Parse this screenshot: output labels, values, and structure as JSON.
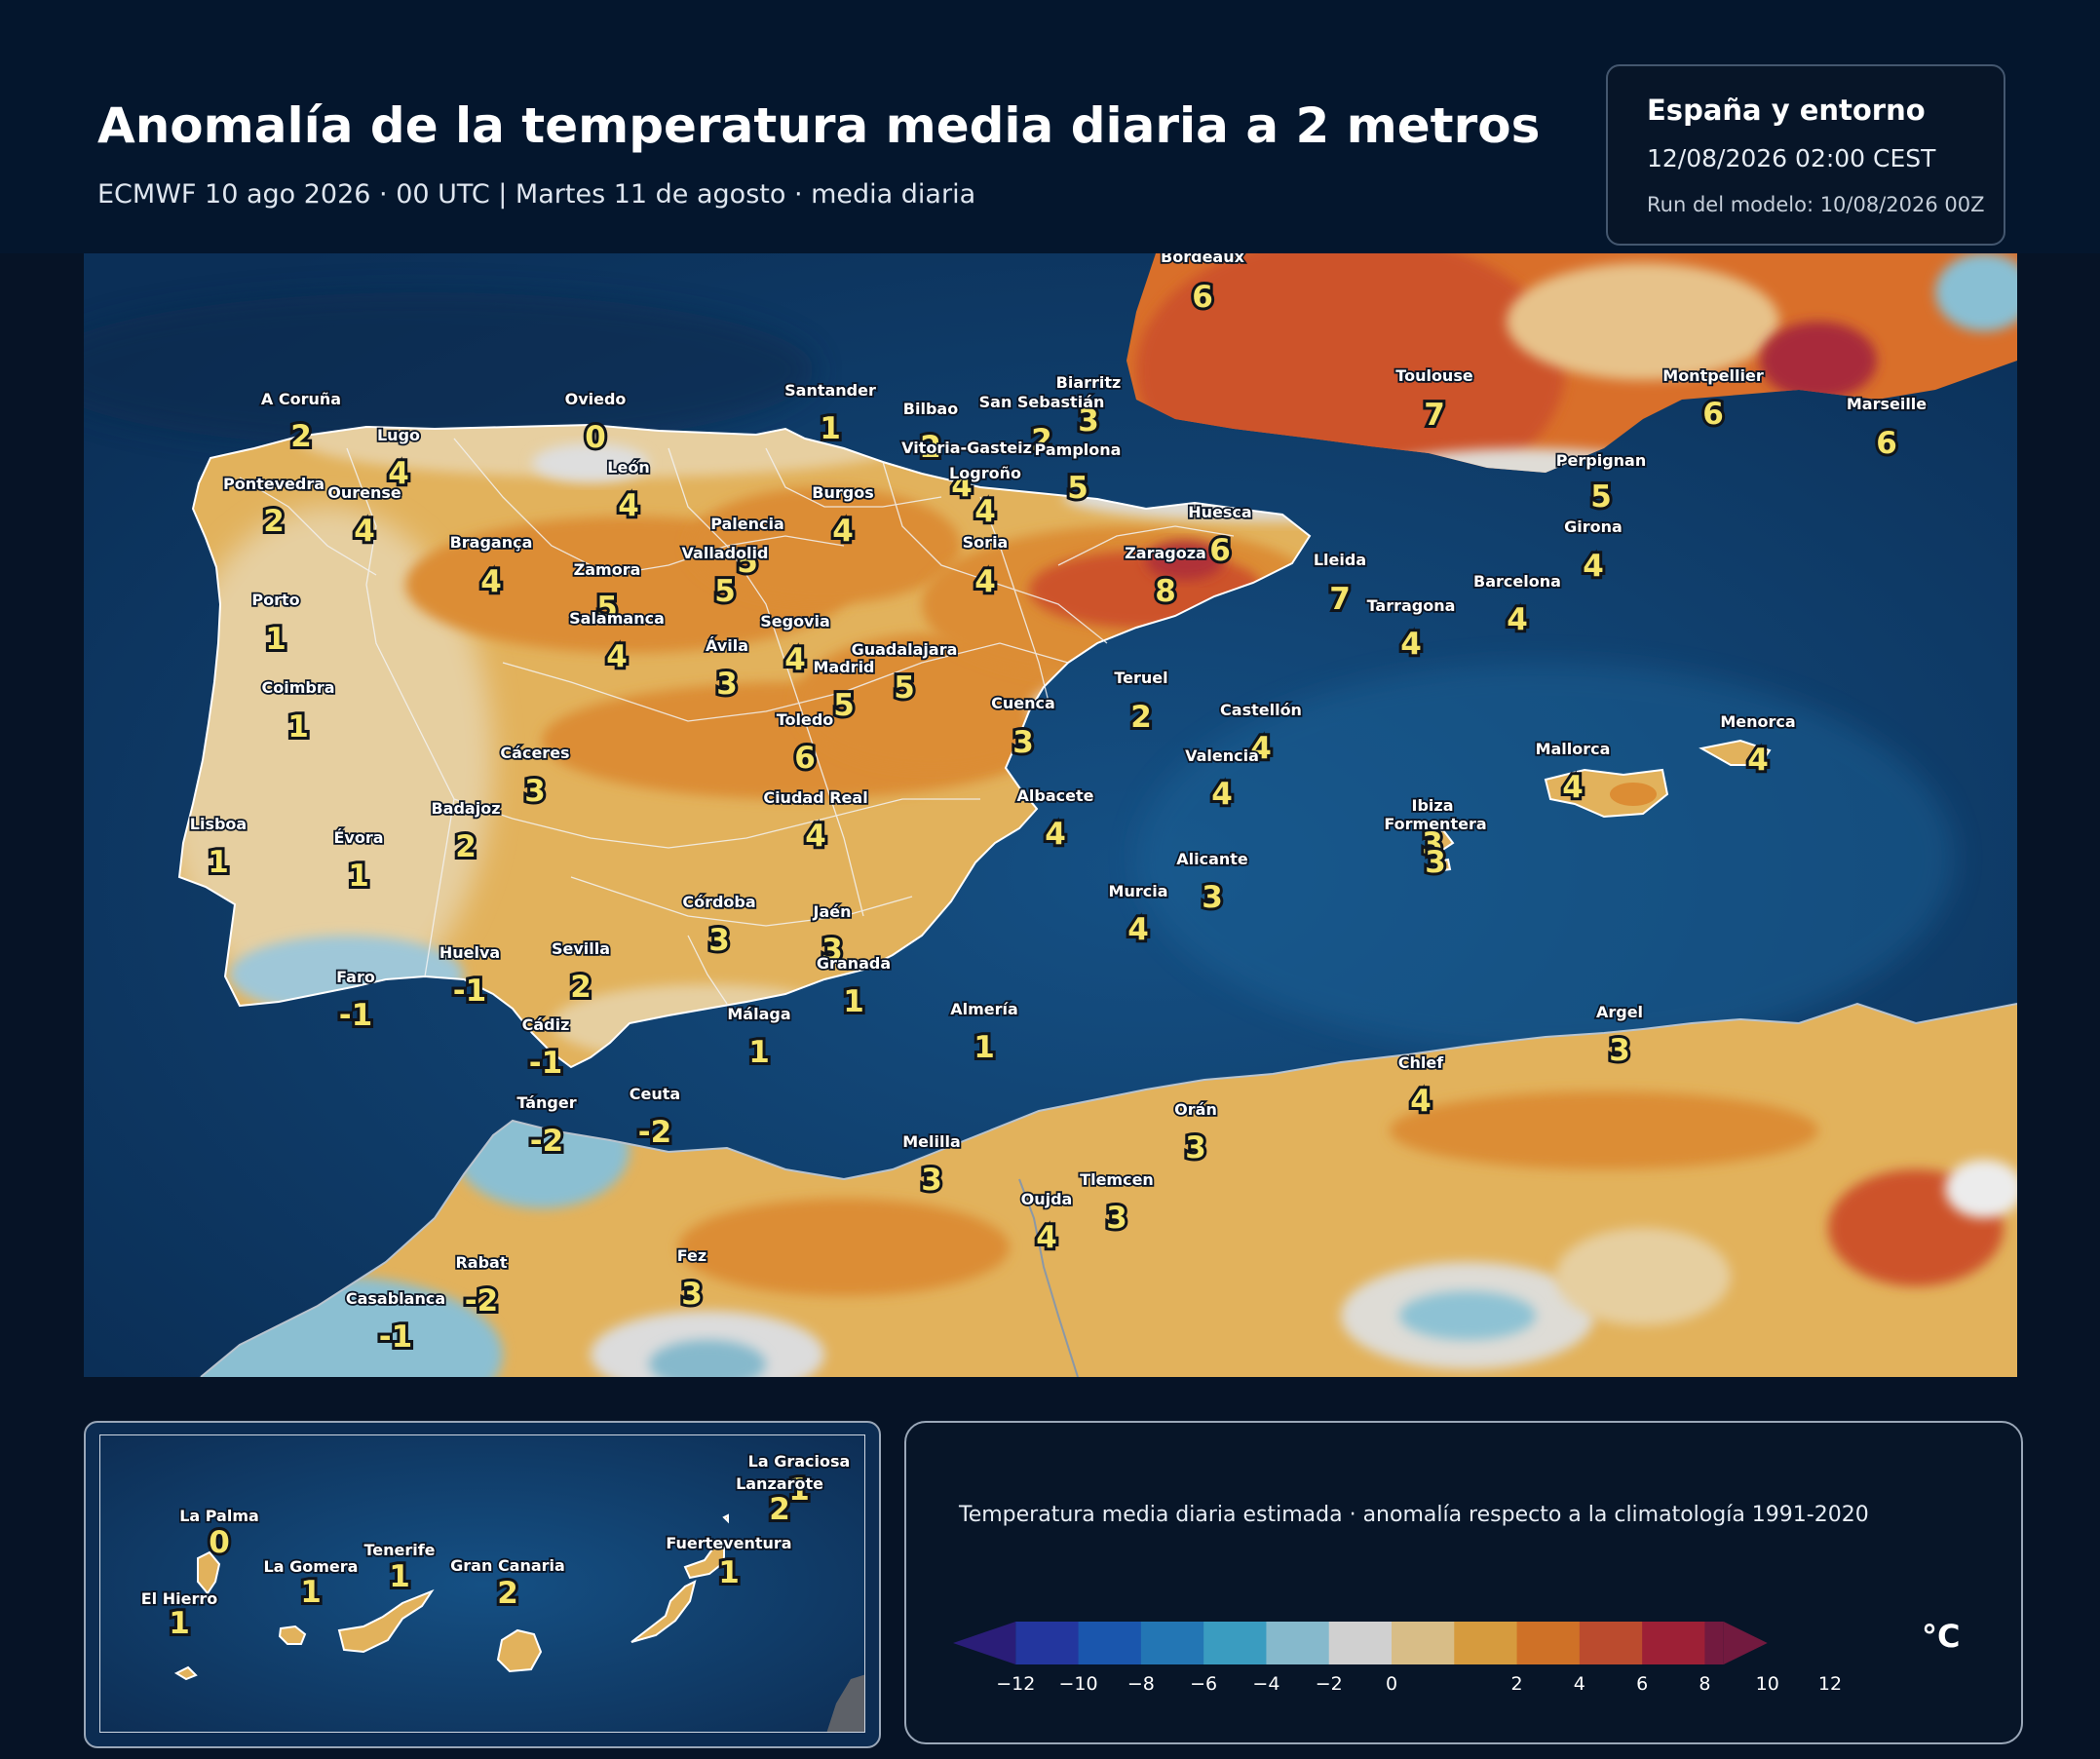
{
  "header": {
    "title": "Anomalía de la temperatura media diaria a 2 metros",
    "subtitle": "ECMWF 10 ago 2026 · 00 UTC  |  Martes 11 de agosto · media diaria"
  },
  "info": {
    "region": "España y entorno",
    "valid_time": "12/08/2026  02:00 CEST",
    "run": "Run del modelo: 10/08/2026 00Z"
  },
  "legend": {
    "caption": "Temperatura media diaria estimada · anomalía respecto a la climatología 1991-2020",
    "unit": "°C",
    "ticks": [
      "−12",
      "−10",
      "−8",
      "−6",
      "−4",
      "−2",
      "0",
      "2",
      "4",
      "6",
      "8",
      "10",
      "12"
    ],
    "colors": [
      "#2a1d78",
      "#23369e",
      "#1a56ad",
      "#2376b4",
      "#3a9cc0",
      "#86b9cc",
      "#d0d0d0",
      "#d8bd87",
      "#d69b3e",
      "#cf7127",
      "#bb4b2e",
      "#9d2036",
      "#721a3f"
    ]
  },
  "cities": [
    {
      "name": "Bordeaux",
      "value": "6"
    },
    {
      "name": "Toulouse",
      "value": "7"
    },
    {
      "name": "Montpellier",
      "value": "6"
    },
    {
      "name": "Marseille",
      "value": "6"
    },
    {
      "name": "Biarritz",
      "value": "3"
    },
    {
      "name": "Perpignan",
      "value": "5"
    },
    {
      "name": "A Coruña",
      "value": "2"
    },
    {
      "name": "Lugo",
      "value": "4"
    },
    {
      "name": "Oviedo",
      "value": "0"
    },
    {
      "name": "Santander",
      "value": "1"
    },
    {
      "name": "Bilbao",
      "value": "2"
    },
    {
      "name": "San Sebastián",
      "value": "2"
    },
    {
      "name": "Vitoria-Gasteiz",
      "value": "4"
    },
    {
      "name": "Pamplona",
      "value": "5"
    },
    {
      "name": "Logroño",
      "value": "4"
    },
    {
      "name": "Pontevedra",
      "value": "2"
    },
    {
      "name": "Ourense",
      "value": "4"
    },
    {
      "name": "León",
      "value": "4"
    },
    {
      "name": "Burgos",
      "value": "4"
    },
    {
      "name": "Palencia",
      "value": "5"
    },
    {
      "name": "Huesca",
      "value": "6"
    },
    {
      "name": "Girona",
      "value": "4"
    },
    {
      "name": "Bragança",
      "value": "4"
    },
    {
      "name": "Zamora",
      "value": "5"
    },
    {
      "name": "Valladolid",
      "value": "5"
    },
    {
      "name": "Soria",
      "value": "4"
    },
    {
      "name": "Zaragoza",
      "value": "8"
    },
    {
      "name": "Lleida",
      "value": "7"
    },
    {
      "name": "Barcelona",
      "value": "4"
    },
    {
      "name": "Tarragona",
      "value": "4"
    },
    {
      "name": "Porto",
      "value": "1"
    },
    {
      "name": "Salamanca",
      "value": "4"
    },
    {
      "name": "Segovia",
      "value": "4"
    },
    {
      "name": "Ávila",
      "value": "3"
    },
    {
      "name": "Guadalajara",
      "value": "5"
    },
    {
      "name": "Madrid",
      "value": "5"
    },
    {
      "name": "Coimbra",
      "value": "1"
    },
    {
      "name": "Teruel",
      "value": "2"
    },
    {
      "name": "Cuenca",
      "value": "3"
    },
    {
      "name": "Toledo",
      "value": "6"
    },
    {
      "name": "Castellón",
      "value": "4"
    },
    {
      "name": "Valencia",
      "value": "4"
    },
    {
      "name": "Cáceres",
      "value": "3"
    },
    {
      "name": "Badajoz",
      "value": "2"
    },
    {
      "name": "Ciudad Real",
      "value": "4"
    },
    {
      "name": "Albacete",
      "value": "4"
    },
    {
      "name": "Lisboa",
      "value": "1"
    },
    {
      "name": "Évora",
      "value": "1"
    },
    {
      "name": "Alicante",
      "value": "3"
    },
    {
      "name": "Murcia",
      "value": "4"
    },
    {
      "name": "Córdoba",
      "value": "3"
    },
    {
      "name": "Jaén",
      "value": "3"
    },
    {
      "name": "Granada",
      "value": "1"
    },
    {
      "name": "Sevilla",
      "value": "2"
    },
    {
      "name": "Huelva",
      "value": "-1"
    },
    {
      "name": "Faro",
      "value": "-1"
    },
    {
      "name": "Cádiz",
      "value": "-1"
    },
    {
      "name": "Málaga",
      "value": "1"
    },
    {
      "name": "Almería",
      "value": "1"
    },
    {
      "name": "Mallorca",
      "value": "4"
    },
    {
      "name": "Menorca",
      "value": "4"
    },
    {
      "name": "Ibiza",
      "value": "3"
    },
    {
      "name": "Formentera",
      "value": "3"
    },
    {
      "name": "Tánger",
      "value": "-2"
    },
    {
      "name": "Ceuta",
      "value": "-2"
    },
    {
      "name": "Melilla",
      "value": "3"
    },
    {
      "name": "Orán",
      "value": "3"
    },
    {
      "name": "Chlef",
      "value": "4"
    },
    {
      "name": "Argel",
      "value": "3"
    },
    {
      "name": "Oujda",
      "value": "4"
    },
    {
      "name": "Tlemcen",
      "value": "3"
    },
    {
      "name": "Fez",
      "value": "3"
    },
    {
      "name": "Rabat",
      "value": "-2"
    },
    {
      "name": "Casablanca",
      "value": "-1"
    }
  ],
  "canarias": [
    {
      "name": "La Graciosa",
      "value": "1"
    },
    {
      "name": "Lanzarote",
      "value": "2"
    },
    {
      "name": "Fuerteventura",
      "value": "1"
    },
    {
      "name": "La Palma",
      "value": "0"
    },
    {
      "name": "Tenerife",
      "value": "1"
    },
    {
      "name": "La Gomera",
      "value": "1"
    },
    {
      "name": "Gran Canaria",
      "value": "2"
    },
    {
      "name": "El Hierro",
      "value": "1"
    }
  ]
}
